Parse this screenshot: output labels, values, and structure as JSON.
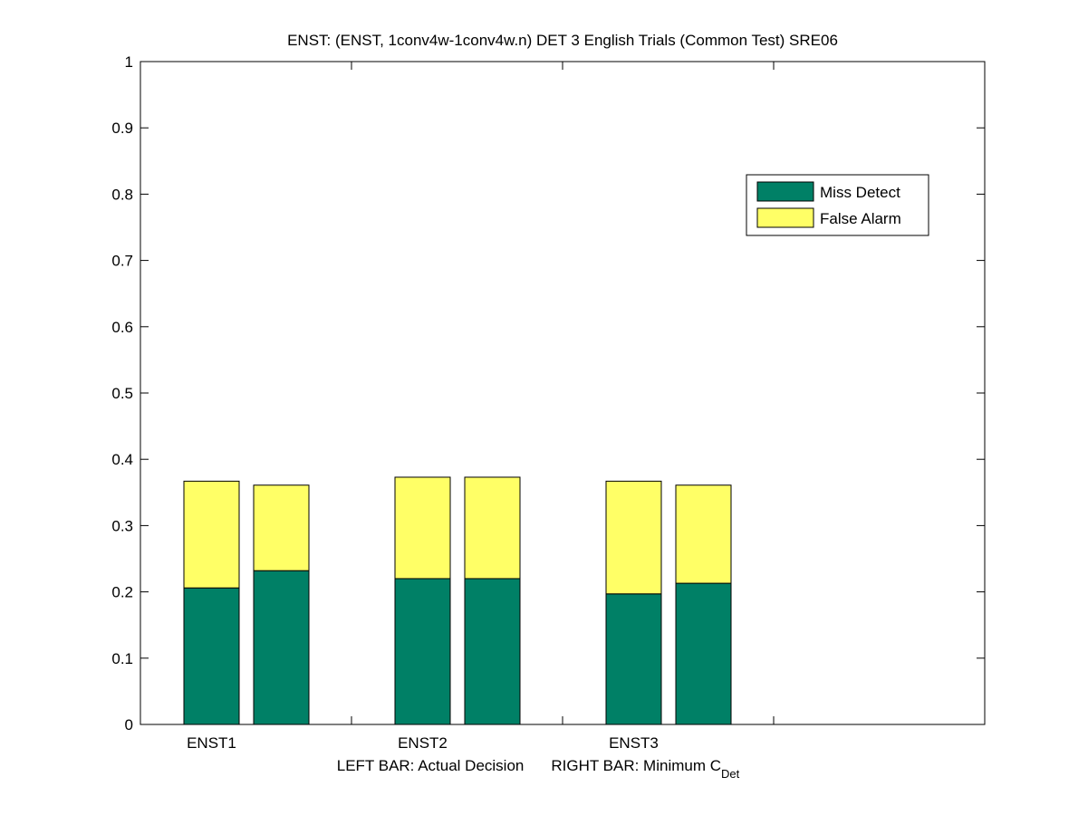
{
  "chart_data": {
    "type": "stacked-pair-bar",
    "title": "ENST: (ENST, 1conv4w-1conv4w.n) DET 3 English Trials (Common Test) SRE06",
    "categories": [
      "ENST1",
      "ENST2",
      "ENST3",
      null
    ],
    "xlabel": {
      "left": "LEFT BAR: Actual Decision",
      "right": "RIGHT BAR: Minimum C",
      "right_sub": "Det"
    },
    "series": [
      {
        "name": "Miss Detect",
        "color": "#008066",
        "values": [
          [
            0.206,
            0.232
          ],
          [
            0.22,
            0.22
          ],
          [
            0.197,
            0.213
          ],
          null
        ]
      },
      {
        "name": "False Alarm",
        "color": "#ffff66",
        "values": [
          [
            0.161,
            0.129
          ],
          [
            0.153,
            0.153
          ],
          [
            0.17,
            0.148
          ],
          null
        ]
      }
    ],
    "ylim": [
      0,
      1
    ],
    "yticks": [
      0,
      0.1,
      0.2,
      0.3,
      0.4,
      0.5,
      0.6,
      0.7,
      0.8,
      0.9,
      1
    ],
    "grid": false,
    "legend": "upper-right"
  }
}
